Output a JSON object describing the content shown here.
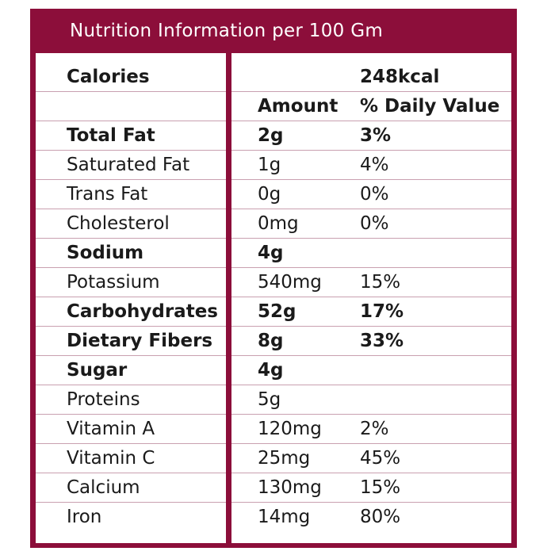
{
  "title": "Nutrition Information per 100 Gm",
  "header": {
    "calories_label": "Calories",
    "calories_value": "248kcal",
    "amount_label": "Amount",
    "daily_value_label": "% Daily Value"
  },
  "rows": [
    {
      "name": "Total Fat",
      "amount": "2g",
      "dv": "3%",
      "bold": true
    },
    {
      "name": "Saturated Fat",
      "amount": "1g",
      "dv": "4%",
      "bold": false
    },
    {
      "name": "Trans Fat",
      "amount": "0g",
      "dv": "0%",
      "bold": false
    },
    {
      "name": "Cholesterol",
      "amount": "0mg",
      "dv": "0%",
      "bold": false
    },
    {
      "name": "Sodium",
      "amount": "4g",
      "dv": "",
      "bold": true
    },
    {
      "name": "Potassium",
      "amount": "540mg",
      "dv": "15%",
      "bold": false
    },
    {
      "name": "Carbohydrates",
      "amount": "52g",
      "dv": "17%",
      "bold": true
    },
    {
      "name": "Dietary Fibers",
      "amount": "8g",
      "dv": "33%",
      "bold": true
    },
    {
      "name": "Sugar",
      "amount": "4g",
      "dv": "",
      "bold": true
    },
    {
      "name": "Proteins",
      "amount": "5g",
      "dv": "",
      "bold": false
    },
    {
      "name": "Vitamin A",
      "amount": "120mg",
      "dv": "2%",
      "bold": false
    },
    {
      "name": "Vitamin C",
      "amount": "25mg",
      "dv": "45%",
      "bold": false
    },
    {
      "name": "Calcium",
      "amount": "130mg",
      "dv": "15%",
      "bold": false
    },
    {
      "name": "Iron",
      "amount": "14mg",
      "dv": "80%",
      "bold": false
    }
  ],
  "colors": {
    "border": "#8c0e3a",
    "row_line": "#c9a0b0",
    "text": "#1a1a1a"
  }
}
